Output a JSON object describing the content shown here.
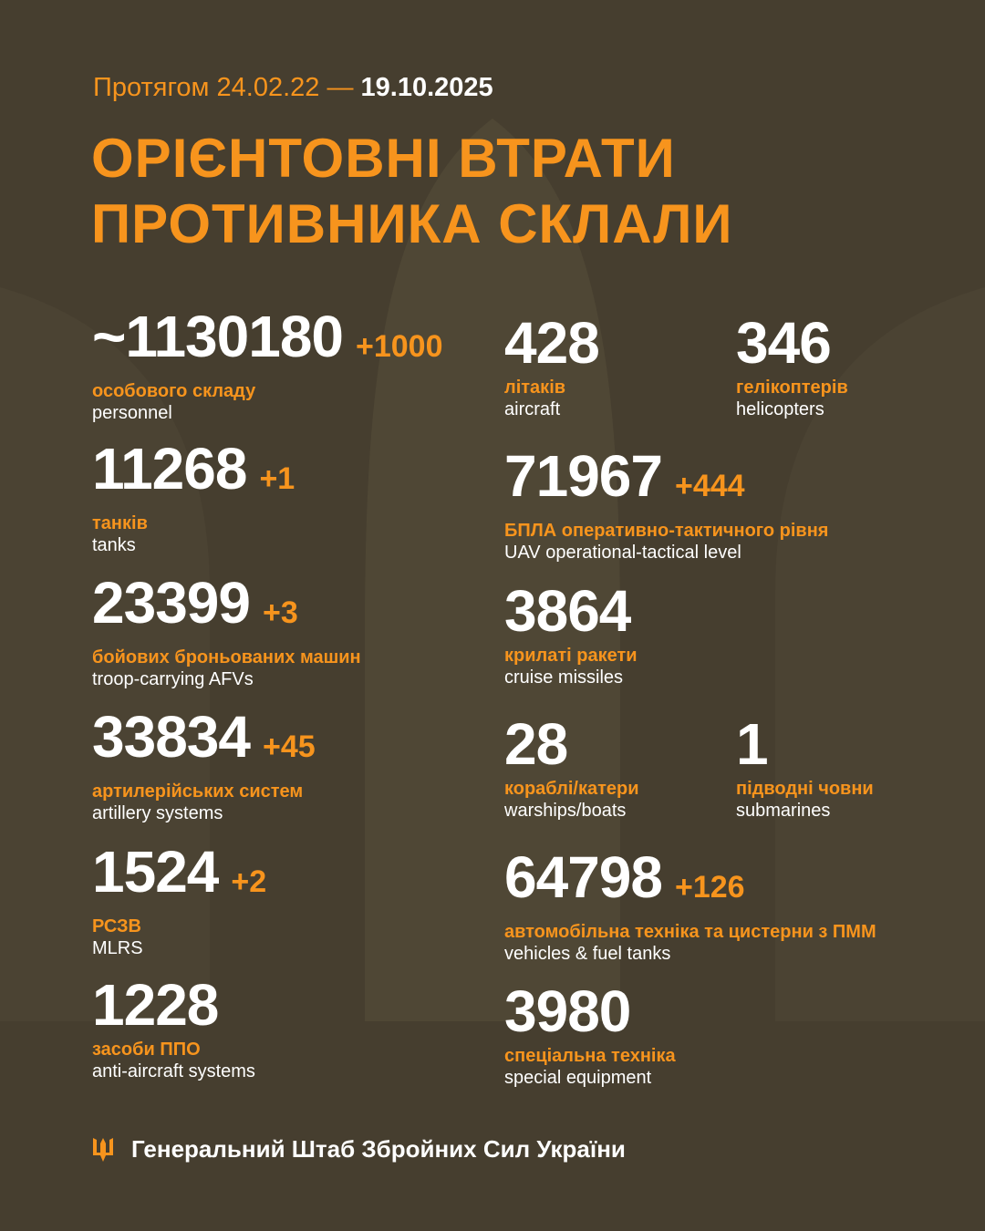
{
  "colors": {
    "background": "#463e2f",
    "accent": "#f7941d",
    "text": "#ffffff"
  },
  "header": {
    "period_prefix": "Протягом 24.02.22 —",
    "period_end": "19.10.2025",
    "title_line1": "ОРІЄНТОВНІ ВТРАТИ",
    "title_line2": "ПРОТИВНИКА СКЛАЛИ"
  },
  "stats": {
    "personnel": {
      "value": "~1130180",
      "delta": "+1000",
      "ua": "особового складу",
      "en": "personnel"
    },
    "tanks": {
      "value": "11268",
      "delta": "+1",
      "ua": "танків",
      "en": "tanks"
    },
    "afv": {
      "value": "23399",
      "delta": "+3",
      "ua": "бойових броньованих машин",
      "en": "troop-carrying AFVs"
    },
    "artillery": {
      "value": "33834",
      "delta": "+45",
      "ua": "артилерійських систем",
      "en": "artillery systems"
    },
    "mlrs": {
      "value": "1524",
      "delta": "+2",
      "ua": "РСЗВ",
      "en": "MLRS"
    },
    "air_defense": {
      "value": "1228",
      "ua": "засоби ППО",
      "en": "anti-aircraft systems"
    },
    "aircraft": {
      "value": "428",
      "ua": "літаків",
      "en": "aircraft"
    },
    "helicopters": {
      "value": "346",
      "ua": "гелікоптерів",
      "en": "helicopters"
    },
    "uav": {
      "value": "71967",
      "delta": "+444",
      "ua": "БПЛА оперативно-тактичного рівня",
      "en": "UAV operational-tactical level"
    },
    "cruise_missiles": {
      "value": "3864",
      "ua": "крилаті ракети",
      "en": "cruise missiles"
    },
    "warships": {
      "value": "28",
      "ua": "кораблі/катери",
      "en": "warships/boats"
    },
    "submarines": {
      "value": "1",
      "ua": "підводні човни",
      "en": "submarines"
    },
    "vehicles": {
      "value": "64798",
      "delta": "+126",
      "ua": "автомобільна техніка та цистерни з ПММ",
      "en": "vehicles & fuel tanks"
    },
    "special": {
      "value": "3980",
      "ua": "спеціальна техніка",
      "en": "special equipment"
    }
  },
  "footer": {
    "icon": "trident-icon",
    "text": "Генеральний Штаб Збройних Сил України"
  }
}
